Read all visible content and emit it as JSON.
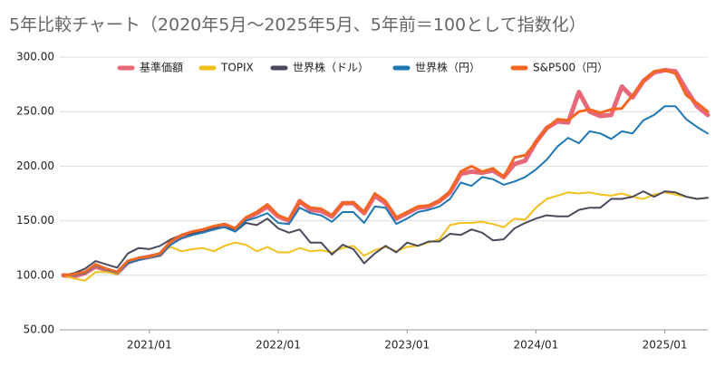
{
  "chart_data": {
    "type": "line",
    "title": "5年比較チャート（2020年5月～2025年5月、5年前＝100として指数化）",
    "x": [
      "2020/05",
      "2020/06",
      "2020/07",
      "2020/08",
      "2020/09",
      "2020/10",
      "2020/11",
      "2020/12",
      "2021/01",
      "2021/02",
      "2021/03",
      "2021/04",
      "2021/05",
      "2021/06",
      "2021/07",
      "2021/08",
      "2021/09",
      "2021/10",
      "2021/11",
      "2021/12",
      "2022/01",
      "2022/02",
      "2022/03",
      "2022/04",
      "2022/05",
      "2022/06",
      "2022/07",
      "2022/08",
      "2022/09",
      "2022/10",
      "2022/11",
      "2022/12",
      "2023/01",
      "2023/02",
      "2023/03",
      "2023/04",
      "2023/05",
      "2023/06",
      "2023/07",
      "2023/08",
      "2023/09",
      "2023/10",
      "2023/11",
      "2023/12",
      "2024/01",
      "2024/02",
      "2024/03",
      "2024/04",
      "2024/05",
      "2024/06",
      "2024/07",
      "2024/08",
      "2024/09",
      "2024/10",
      "2024/11",
      "2024/12",
      "2025/01",
      "2025/02",
      "2025/03",
      "2025/04",
      "2025/05"
    ],
    "xticks": [
      "2021/01",
      "2022/01",
      "2023/01",
      "2024/01",
      "2025/01"
    ],
    "ylim": [
      50,
      300
    ],
    "yticks": [
      {
        "value": 50,
        "label": "50.00"
      },
      {
        "value": 100,
        "label": "100.00"
      },
      {
        "value": 150,
        "label": "150.00"
      },
      {
        "value": 200,
        "label": "200.00"
      },
      {
        "value": 250,
        "label": "250.00"
      },
      {
        "value": 300,
        "label": "300.00"
      }
    ],
    "grid": true,
    "legend": "top",
    "series": [
      {
        "name": "基準価額",
        "color": "#e8687a",
        "values": [
          100,
          99,
          102,
          108,
          105,
          102,
          112,
          115,
          117,
          119,
          130,
          135,
          138,
          141,
          143,
          146,
          142,
          152,
          157,
          163,
          154,
          150,
          168,
          160,
          159,
          154,
          166,
          166,
          157,
          173,
          166,
          152,
          157,
          162,
          163,
          168,
          176,
          193,
          195,
          194,
          196,
          190,
          202,
          205,
          222,
          235,
          241,
          240,
          268,
          250,
          246,
          247,
          273,
          263,
          278,
          286,
          288,
          287,
          270,
          255,
          247
        ]
      },
      {
        "name": "TOPIX",
        "color": "#f4c01e",
        "values": [
          100,
          97,
          95,
          103,
          103,
          101,
          112,
          115,
          116,
          121,
          126,
          122,
          124,
          125,
          122,
          127,
          130,
          128,
          122,
          126,
          121,
          121,
          125,
          122,
          123,
          121,
          125,
          127,
          118,
          123,
          126,
          122,
          126,
          127,
          130,
          133,
          146,
          148,
          148,
          149,
          147,
          144,
          152,
          151,
          162,
          170,
          173,
          176,
          175,
          176,
          174,
          173,
          175,
          172,
          170,
          174,
          176,
          174,
          172,
          170,
          171
        ]
      },
      {
        "name": "世界株（ドル）",
        "color": "#4b4a5c",
        "values": [
          100,
          102,
          106,
          113,
          110,
          107,
          120,
          125,
          124,
          127,
          133,
          137,
          138,
          141,
          143,
          147,
          140,
          148,
          146,
          152,
          143,
          139,
          142,
          130,
          130,
          119,
          128,
          124,
          111,
          120,
          127,
          121,
          130,
          127,
          131,
          131,
          138,
          137,
          142,
          139,
          132,
          133,
          143,
          148,
          152,
          155,
          154,
          154,
          160,
          162,
          162,
          170,
          170,
          172,
          177,
          172,
          177,
          176,
          172,
          170,
          171
        ]
      },
      {
        "name": "世界株（円）",
        "color": "#1f77b4",
        "values": [
          100,
          100,
          102,
          109,
          105,
          102,
          111,
          114,
          116,
          118,
          128,
          134,
          137,
          139,
          142,
          144,
          140,
          150,
          153,
          157,
          148,
          147,
          162,
          157,
          155,
          149,
          158,
          158,
          148,
          163,
          162,
          147,
          152,
          158,
          160,
          163,
          170,
          185,
          182,
          190,
          188,
          183,
          186,
          190,
          197,
          206,
          218,
          226,
          221,
          232,
          230,
          225,
          232,
          230,
          242,
          247,
          255,
          255,
          243,
          236,
          230
        ]
      },
      {
        "name": "S&P500（円）",
        "color": "#f26722",
        "values": [
          100,
          101,
          103,
          110,
          106,
          103,
          113,
          116,
          117,
          120,
          131,
          137,
          140,
          142,
          145,
          147,
          143,
          153,
          158,
          165,
          155,
          151,
          168,
          162,
          161,
          155,
          166,
          167,
          158,
          175,
          168,
          153,
          158,
          163,
          164,
          168,
          177,
          195,
          200,
          195,
          198,
          190,
          208,
          210,
          222,
          235,
          243,
          242,
          250,
          252,
          249,
          252,
          253,
          265,
          278,
          287,
          288,
          285,
          265,
          258,
          250
        ]
      }
    ]
  }
}
